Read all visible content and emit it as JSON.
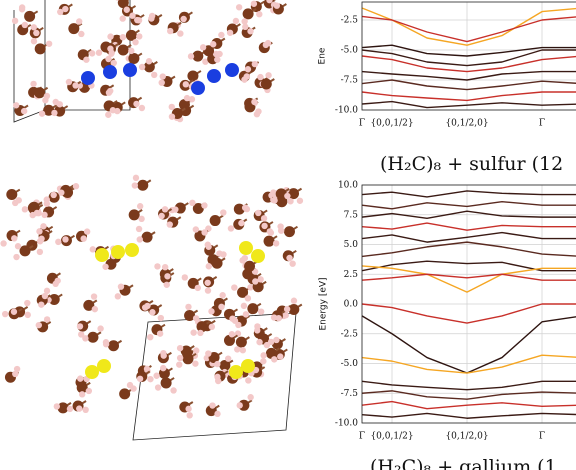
{
  "chart_data": [
    {
      "type": "line",
      "ylabel": "Ene",
      "x": [
        0,
        0.3,
        0.65,
        1.05,
        1.4,
        1.8,
        2.2
      ],
      "xlim": [
        0,
        2.2
      ],
      "xticks": [
        {
          "value": 0,
          "label": "Γ"
        },
        {
          "value": 0.3,
          "label": "{0,0,1/2}"
        },
        {
          "value": 1.05,
          "label": "{0,1/2,0}"
        },
        {
          "value": 1.8,
          "label": "Γ"
        }
      ],
      "ylim": [
        -10,
        -1
      ],
      "yticks": [
        {
          "value": -10,
          "label": "-10.0"
        },
        -7.5,
        {
          "value": -5,
          "label": "-5.0"
        },
        -2.5
      ],
      "grid": true,
      "series": [
        {
          "color": "#f5a623",
          "values": [
            -1.5,
            -2.5,
            -4.0,
            -4.6,
            -3.8,
            -1.8,
            -1.5
          ]
        },
        {
          "color": "#c8302a",
          "values": [
            -2.2,
            -2.5,
            -3.5,
            -4.3,
            -3.5,
            -2.5,
            -2.2
          ]
        },
        {
          "color": "#2e1410",
          "values": [
            -4.8,
            -4.6,
            -5.3,
            -5.5,
            -5.2,
            -4.8,
            -4.8
          ]
        },
        {
          "color": "#3a1a14",
          "values": [
            -5.0,
            -5.3,
            -6.0,
            -6.3,
            -6.0,
            -5.0,
            -5.0
          ]
        },
        {
          "color": "#c8302a",
          "values": [
            -5.5,
            -5.8,
            -6.5,
            -6.8,
            -6.5,
            -5.8,
            -5.5
          ]
        },
        {
          "color": "#3a1a14",
          "values": [
            -6.8,
            -7.0,
            -7.2,
            -7.5,
            -7.0,
            -6.8,
            -6.8
          ]
        },
        {
          "color": "#5a2a20",
          "values": [
            -7.8,
            -7.5,
            -8.0,
            -8.3,
            -8.0,
            -7.6,
            -7.8
          ]
        },
        {
          "color": "#c8302a",
          "values": [
            -8.5,
            -8.8,
            -9.0,
            -9.2,
            -8.8,
            -8.5,
            -8.5
          ]
        },
        {
          "color": "#3a1a14",
          "values": [
            -9.5,
            -9.3,
            -9.8,
            -9.6,
            -9.4,
            -9.6,
            -9.5
          ]
        }
      ]
    },
    {
      "type": "line",
      "title": "(H₂C)₈ + sulfur (12",
      "ylabel": "Energy [eV]",
      "x": [
        0,
        0.3,
        0.65,
        1.05,
        1.4,
        1.8,
        2.2
      ],
      "xlim": [
        0,
        2.2
      ],
      "xticks": [
        {
          "value": 0,
          "label": "Γ"
        },
        {
          "value": 0.3,
          "label": "{0,0,1/2}"
        },
        {
          "value": 1.05,
          "label": "{0,1/2,0}"
        },
        {
          "value": 1.8,
          "label": "Γ"
        }
      ],
      "ylim": [
        -10,
        10
      ],
      "yticks": [
        {
          "value": 10,
          "label": "10.0"
        },
        7.5,
        {
          "value": 5,
          "label": "5.0"
        },
        2.5,
        {
          "value": 0,
          "label": "0.0"
        },
        -2.5,
        {
          "value": -5,
          "label": "-5.0"
        },
        -7.5,
        {
          "value": -10,
          "label": "-10.0"
        }
      ],
      "grid": true,
      "series": [
        {
          "color": "#3a1a14",
          "values": [
            9.2,
            9.4,
            9.0,
            9.5,
            9.3,
            9.2,
            9.2
          ]
        },
        {
          "color": "#5a2a20",
          "values": [
            8.3,
            8.0,
            8.5,
            8.2,
            8.6,
            8.3,
            8.3
          ]
        },
        {
          "color": "#3a1a14",
          "values": [
            7.3,
            7.6,
            7.2,
            7.8,
            7.4,
            7.3,
            7.3
          ]
        },
        {
          "color": "#c8302a",
          "values": [
            6.5,
            6.3,
            6.8,
            6.2,
            6.6,
            6.5,
            6.5
          ]
        },
        {
          "color": "#3a1a14",
          "values": [
            5.5,
            5.8,
            5.2,
            5.6,
            6.0,
            5.5,
            5.5
          ]
        },
        {
          "color": "#5a2a20",
          "values": [
            4.0,
            4.3,
            4.8,
            5.2,
            4.8,
            4.2,
            4.0
          ]
        },
        {
          "color": "#3a1a14",
          "values": [
            2.8,
            3.3,
            3.6,
            3.4,
            3.5,
            2.8,
            2.8
          ]
        },
        {
          "color": "#f5a623",
          "values": [
            3.2,
            3.0,
            2.5,
            1.0,
            2.5,
            3.0,
            3.0
          ]
        },
        {
          "color": "#c8302a",
          "values": [
            2.0,
            2.2,
            2.5,
            2.2,
            2.5,
            2.0,
            2.0
          ]
        },
        {
          "color": "#c8302a",
          "values": [
            0,
            -0.3,
            -1.0,
            -1.6,
            -1.0,
            0,
            0
          ]
        },
        {
          "color": "#2e1410",
          "values": [
            -1.0,
            -2.5,
            -4.5,
            -5.8,
            -4.5,
            -1.5,
            -1.0
          ]
        },
        {
          "color": "#f5a623",
          "values": [
            -4.5,
            -4.8,
            -5.5,
            -5.8,
            -5.3,
            -4.3,
            -4.5
          ]
        },
        {
          "color": "#3a1a14",
          "values": [
            -6.5,
            -6.8,
            -7.0,
            -7.2,
            -7.0,
            -6.5,
            -6.5
          ]
        },
        {
          "color": "#5a2a20",
          "values": [
            -7.5,
            -7.3,
            -7.8,
            -8.0,
            -7.6,
            -7.4,
            -7.5
          ]
        },
        {
          "color": "#c8302a",
          "values": [
            -8.5,
            -8.2,
            -8.8,
            -8.5,
            -8.3,
            -8.6,
            -8.5
          ]
        },
        {
          "color": "#3a1a14",
          "values": [
            -9.3,
            -9.5,
            -9.2,
            -9.6,
            -9.4,
            -9.2,
            -9.3
          ]
        }
      ]
    }
  ],
  "next_title": "(H₂C)₈ + gallium (1"
}
